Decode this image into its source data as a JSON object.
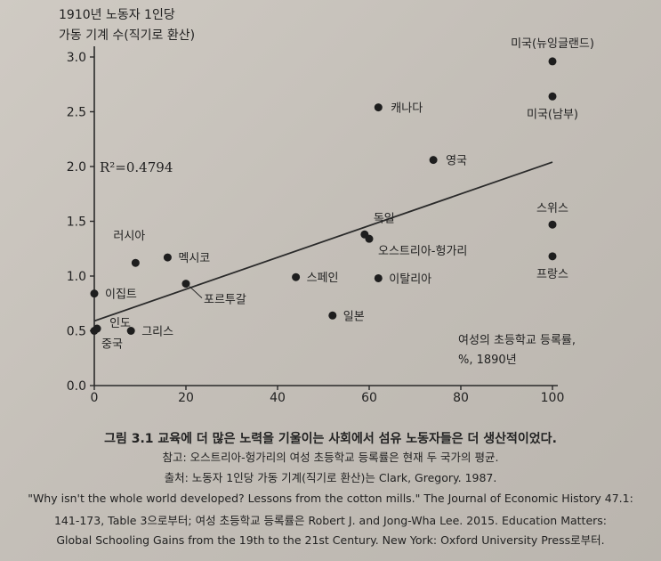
{
  "chart_data": {
    "type": "scatter",
    "ylabel_line1": "1910년 노동자 1인당",
    "ylabel_line2": "가동 기계 수(직기로 환산)",
    "xlabel_line1": "여성의 초등학교 등록률,",
    "xlabel_line2": "%, 1890년",
    "xlim": [
      0,
      100
    ],
    "ylim": [
      0,
      3.0
    ],
    "x_ticks": [
      0,
      20,
      40,
      60,
      80,
      100
    ],
    "x_tick_labels": [
      "0",
      "20",
      "40",
      "60",
      "80",
      "100"
    ],
    "y_ticks": [
      0,
      0.5,
      1.0,
      1.5,
      2.0,
      2.5,
      3.0
    ],
    "y_tick_labels": [
      "0.0",
      "0.5",
      "1.0",
      "1.5",
      "2.0",
      "2.5",
      "3.0"
    ],
    "annotation": "R²=0.4794",
    "trendline": {
      "x": [
        0,
        100
      ],
      "y": [
        0.59,
        2.04
      ]
    },
    "points": [
      {
        "label": "미국(뉴잉글랜드)",
        "x": 100,
        "y": 2.96
      },
      {
        "label": "미국(남부)",
        "x": 100,
        "y": 2.64
      },
      {
        "label": "캐나다",
        "x": 62,
        "y": 2.54
      },
      {
        "label": "영국",
        "x": 74,
        "y": 2.06
      },
      {
        "label": "스위스",
        "x": 100,
        "y": 1.47
      },
      {
        "label": "프랑스",
        "x": 100,
        "y": 1.18
      },
      {
        "label": "독일",
        "x": 59,
        "y": 1.38
      },
      {
        "label": "오스트리아-헝가리",
        "x": 60,
        "y": 1.34
      },
      {
        "label": "러시아",
        "x": 9,
        "y": 1.12
      },
      {
        "label": "멕시코",
        "x": 16,
        "y": 1.17
      },
      {
        "label": "포르투갈",
        "x": 20,
        "y": 0.93
      },
      {
        "label": "스페인",
        "x": 44,
        "y": 0.99
      },
      {
        "label": "이탈리아",
        "x": 62,
        "y": 0.98
      },
      {
        "label": "이집트",
        "x": 0,
        "y": 0.84
      },
      {
        "label": "일본",
        "x": 52,
        "y": 0.64
      },
      {
        "label": "인도",
        "x": 0.6,
        "y": 0.52
      },
      {
        "label": "중국",
        "x": 0,
        "y": 0.5
      },
      {
        "label": "그리스",
        "x": 8,
        "y": 0.5
      }
    ]
  },
  "caption": {
    "title": "그림 3.1 교육에 더 많은 노력을 기울이는 사회에서 섬유 노동자들은 더 생산적이었다.",
    "note": "참고: 오스트리아-헝가리의 여성 초등학교 등록률은 현재 두 국가의 평균.",
    "source1": "출처: 노동자 1인당 가동 기계(직기로 환산)는 Clark, Gregory. 1987.",
    "source2": "\"Why isn't the whole world developed? Lessons from the cotton mills.\" The Journal of Economic History 47.1:",
    "source3": "141-173, Table 3으로부터; 여성 초등학교 등록률은 Robert J. and Jong-Wha Lee. 2015. Education Matters:",
    "source4": "Global Schooling Gains from the 19th to the 21st Century. New York: Oxford University Press로부터."
  }
}
